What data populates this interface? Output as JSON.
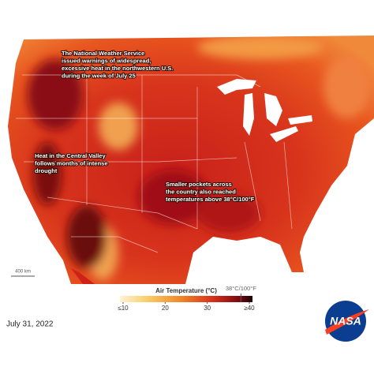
{
  "annotations": [
    [
      "The National Weather Service",
      "issued warnings of widespread,",
      "excessive heat in the northwestern U.S.",
      "during the week of July 25"
    ],
    [
      "Heat in the Central Valley",
      "follows months of intense",
      "drought"
    ],
    [
      "Smaller pockets across",
      "the country also reached",
      "temperatures above 38°C/100°F"
    ]
  ],
  "scale_bar": "400 km",
  "legend": {
    "title": "Air Temperature (°C)",
    "lim": [
      10,
      40
    ],
    "ticks": [
      {
        "value": 10,
        "label": "≤10"
      },
      20,
      30,
      {
        "value": 40,
        "label": "≥40"
      }
    ],
    "marker": {
      "value": 38,
      "label": "38°C/100°F"
    }
  },
  "date": "July 31, 2022",
  "logo": "NASA"
}
